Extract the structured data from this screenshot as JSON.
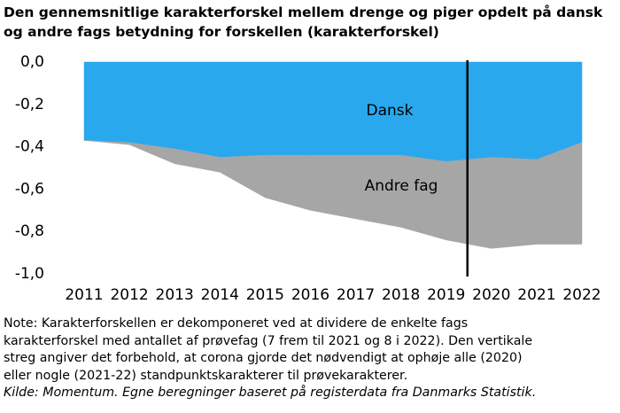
{
  "chart_data": {
    "type": "stacked_area",
    "title": [
      "Den gennemsnitlige karakterforskel mellem drenge og piger opdelt på dansk",
      "og andre fags betydning for forskellen (karakterforskel)"
    ],
    "categories": [
      "2011",
      "2012",
      "2013",
      "2014",
      "2015",
      "2016",
      "2017",
      "2018",
      "2019",
      "2020",
      "2021",
      "2022"
    ],
    "series": [
      {
        "name": "Dansk",
        "color": "#2aa8ee",
        "values": [
          -0.37,
          -0.38,
          -0.41,
          -0.45,
          -0.44,
          -0.44,
          -0.44,
          -0.44,
          -0.47,
          -0.45,
          -0.46,
          -0.38
        ]
      },
      {
        "name": "Andre fag",
        "color": "#a6a6a6",
        "values": [
          0.0,
          -0.01,
          -0.07,
          -0.07,
          -0.2,
          -0.26,
          -0.3,
          -0.34,
          -0.37,
          -0.43,
          -0.4,
          -0.48
        ]
      }
    ],
    "ylim": [
      -1.0,
      0.0
    ],
    "yticks": [
      {
        "value": 0.0,
        "label": "0,0"
      },
      {
        "value": -0.2,
        "label": "-0,2"
      },
      {
        "value": -0.4,
        "label": "-0,4"
      },
      {
        "value": -0.6,
        "label": "-0,6"
      },
      {
        "value": -0.8,
        "label": "-0,8"
      },
      {
        "value": -1.0,
        "label": "-1,0"
      }
    ],
    "grid": false,
    "note": [
      "Note: Karakterforskellen er dekomponeret ved at dividere de enkelte fags",
      "karakterforskel med antallet af prøvefag (7 frem til 2021 og 8 i 2022). Den vertikale",
      "streg angiver det forbehold, at corona gjorde det nødvendigt at ophøje alle (2020)",
      "eller nogle (2021-22) standpunktskarakterer til prøvekarakterer."
    ],
    "source": "Kilde: Momentum. Egne beregninger baseret på registerdata fra Danmarks Statistik."
  }
}
